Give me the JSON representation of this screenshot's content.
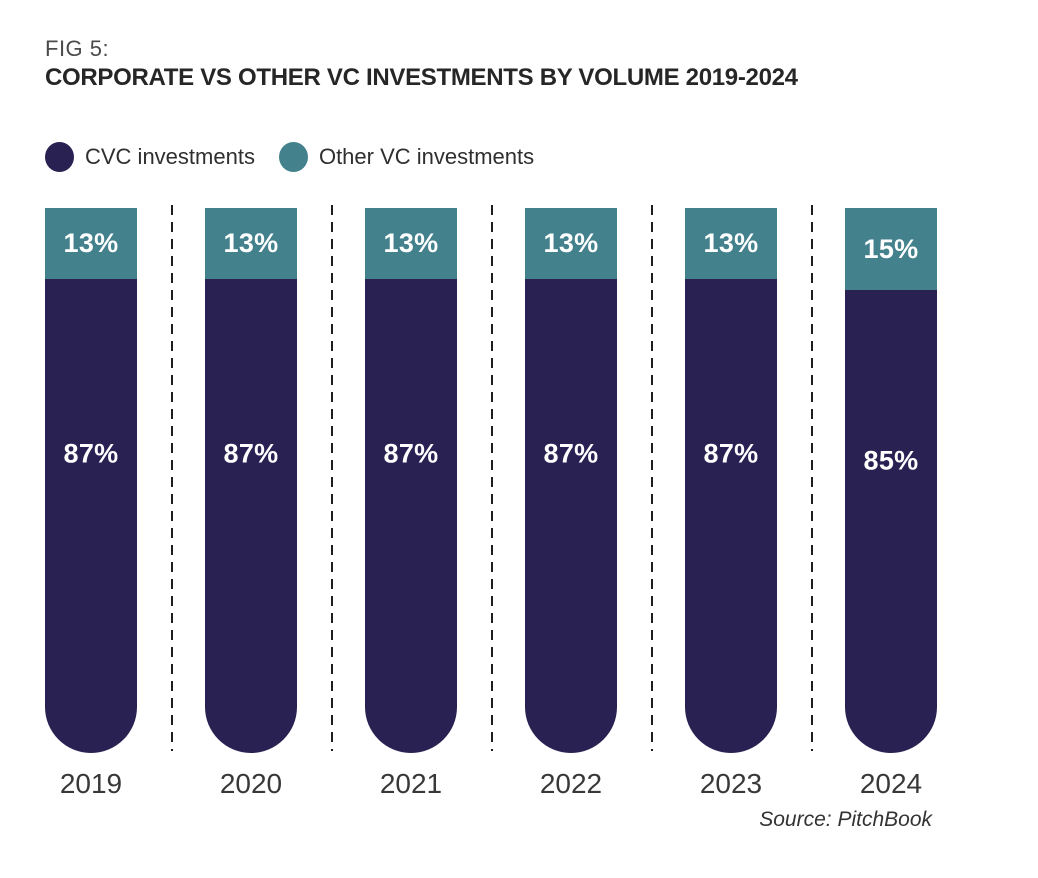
{
  "figure": {
    "fig_label": "FIG 5:",
    "title": "CORPORATE VS OTHER VC INVESTMENTS BY VOLUME 2019-2024",
    "source": "Source: PitchBook"
  },
  "legend": [
    {
      "label": "CVC investments",
      "color": "#2a2153"
    },
    {
      "label": "Other VC investments",
      "color": "#43818d"
    }
  ],
  "colors": {
    "cvc_navy": "#2a2153",
    "other_teal": "#43818d",
    "label_text": "#ffffff",
    "axis_text": "#383838",
    "separator": "#1e1e1e",
    "background": "#ffffff"
  },
  "chart_data": {
    "type": "bar",
    "subtype": "stacked-percentage",
    "orientation": "vertical",
    "title": "CORPORATE VS OTHER VC INVESTMENTS BY VOLUME 2019-2024",
    "categories": [
      "2019",
      "2020",
      "2021",
      "2022",
      "2023",
      "2024"
    ],
    "series": [
      {
        "name": "CVC investments",
        "color": "#2a2153",
        "values": [
          87,
          87,
          87,
          87,
          87,
          85
        ],
        "data_labels": [
          "87%",
          "87%",
          "87%",
          "87%",
          "87%",
          "85%"
        ]
      },
      {
        "name": "Other VC investments",
        "color": "#43818d",
        "values": [
          13,
          13,
          13,
          13,
          13,
          15
        ],
        "data_labels": [
          "13%",
          "13%",
          "13%",
          "13%",
          "13%",
          "15%"
        ]
      }
    ],
    "value_unit": "%",
    "ylim": [
      0,
      100
    ],
    "grid": false,
    "separators": "dashed vertical lines between bars",
    "legend_position": "top-left",
    "bar_style": "flat top, fully rounded bottom"
  }
}
